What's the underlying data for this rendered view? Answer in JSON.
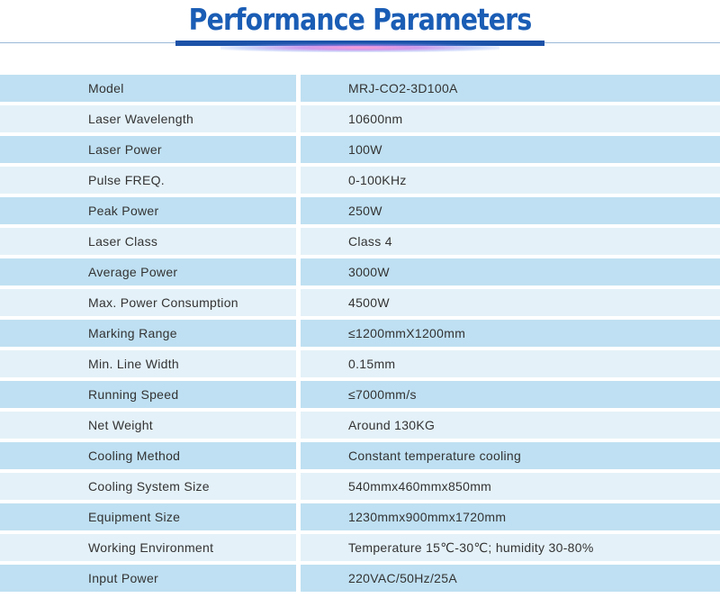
{
  "header": {
    "title": "Performance Parameters"
  },
  "colors": {
    "title": "#1a5db5",
    "bar": "#1c52a8",
    "row_dark": "#bfe0f2",
    "row_light": "#e4f1f8",
    "text": "#333333"
  },
  "specs": [
    {
      "name": "Model",
      "value": "MRJ-CO2-3D100A"
    },
    {
      "name": "Laser Wavelength",
      "value": "10600nm"
    },
    {
      "name": "Laser Power",
      "value": "100W"
    },
    {
      "name": "Pulse FREQ.",
      "value": "0-100KHz"
    },
    {
      "name": "Peak Power",
      "value": "250W"
    },
    {
      "name": "Laser Class",
      "value": "Class 4"
    },
    {
      "name": "Average Power",
      "value": "3000W"
    },
    {
      "name": "Max. Power Consumption",
      "value": "4500W"
    },
    {
      "name": "Marking Range",
      "value": "≤1200mmX1200mm"
    },
    {
      "name": "Min. Line Width",
      "value": "0.15mm"
    },
    {
      "name": "Running Speed",
      "value": "≤7000mm/s"
    },
    {
      "name": "Net Weight",
      "value": "Around 130KG"
    },
    {
      "name": "Cooling Method",
      "value": "Constant temperature cooling"
    },
    {
      "name": "Cooling System Size",
      "value": "540mmx460mmx850mm"
    },
    {
      "name": "Equipment Size",
      "value": "1230mmx900mmx1720mm"
    },
    {
      "name": "Working Environment",
      "value": "Temperature 15℃-30℃; humidity 30-80%"
    },
    {
      "name": "Input Power",
      "value": "220VAC/50Hz/25A"
    }
  ]
}
